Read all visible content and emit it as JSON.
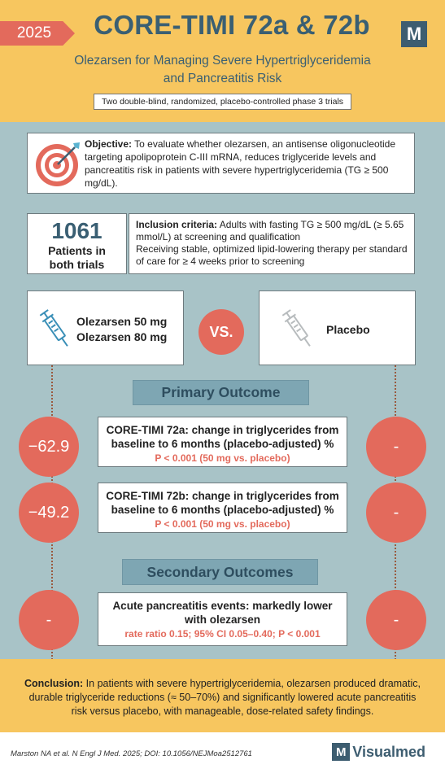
{
  "header": {
    "year": "2025",
    "title": "CORE-TIMI 72a & 72b",
    "subtitle_line1": "Olezarsen for Managing Severe Hypertriglyceridemia",
    "subtitle_line2": "and Pancreatitis Risk",
    "design": "Two double-blind, randomized, placebo-controlled phase 3 trials",
    "logo_letter": "M"
  },
  "objective": {
    "label": "Objective:",
    "text": " To evaluate whether olezarsen, an antisense oligonucleotide targeting apolipoprotein C-III mRNA, reduces triglyceride levels and pancreatitis risk in patients with severe hypertriglyceridemia (TG ≥ 500 mg/dL).",
    "icon": "target-icon"
  },
  "patients": {
    "count": "1061",
    "label_line1": "Patients in",
    "label_line2": "both trials"
  },
  "inclusion": {
    "label": "Inclusion criteria:",
    "line1": " Adults with fasting TG ≥ 500 mg/dL (≥ 5.65 mmol/L) at screening and qualification",
    "line2": "Receiving stable, optimized lipid-lowering therapy per standard of care for ≥ 4 weeks prior to screening"
  },
  "arms": {
    "treatment_line1": "Olezarsen 50 mg",
    "treatment_line2": "Olezarsen 80 mg",
    "vs": "VS.",
    "control": "Placebo"
  },
  "primary": {
    "heading": "Primary Outcome",
    "outcomes": [
      {
        "left_value": "−62.9",
        "right_value": "-",
        "title_line1": "CORE-TIMI 72a: change in triglycerides from",
        "title_line2": "baseline to 6 months (placebo-adjusted) %",
        "stat": "P < 0.001 (50 mg vs. placebo)"
      },
      {
        "left_value": "−49.2",
        "right_value": "-",
        "title_line1": "CORE-TIMI 72b: change in triglycerides from",
        "title_line2": "baseline to 6 months (placebo-adjusted) %",
        "stat": "P < 0.001 (50 mg vs. placebo)"
      }
    ]
  },
  "secondary": {
    "heading": "Secondary Outcomes",
    "outcome": {
      "left_value": "-",
      "right_value": "-",
      "title_line1": "Acute pancreatitis events: markedly lower",
      "title_line2": "with olezarsen",
      "stat": "rate ratio 0.15; 95% CI 0.05–0.40; P < 0.001"
    }
  },
  "conclusion": {
    "label": "Conclusion:",
    "text": " In patients with severe hypertriglyceridemia, olezarsen produced dramatic, durable triglyceride reductions (≈ 50–70%) and significantly lowered acute pancreatitis risk versus placebo, with manageable, dose-related safety findings."
  },
  "footer": {
    "citation": "Marston NA et al. N Engl J Med. 2025; DOI: 10.1056/NEJMoa2512761",
    "brand_letter": "M",
    "brand_name": "Visualmed"
  },
  "colors": {
    "header_bg": "#f7c65f",
    "body_bg": "#a8c3c7",
    "accent_red": "#e36a5c",
    "navy": "#3a5f73"
  }
}
